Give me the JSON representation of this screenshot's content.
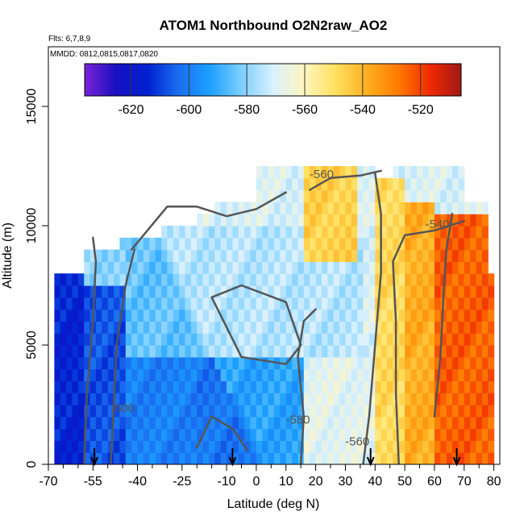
{
  "chart_data": {
    "type": "heatmap",
    "title": "ATOM1 Northbound O2N2raw_AO2",
    "flights_note": "Flts: 6,7,8,9",
    "dates_note": "MMDD: 0812,0815,0817,0820",
    "xlabel": "Latitude (deg N)",
    "ylabel": "Altitude (m)",
    "xlim": [
      -70,
      82
    ],
    "ylim": [
      0,
      17500
    ],
    "x_ticks": [
      -70,
      -55,
      -40,
      -25,
      -10,
      0,
      10,
      20,
      30,
      40,
      50,
      60,
      70,
      80
    ],
    "x_tick_labels": [
      "-70",
      "-55",
      "-40",
      "-25",
      "-10",
      "0",
      "10",
      "20",
      "30",
      "40",
      "50",
      "60",
      "70",
      "80"
    ],
    "x_minor_ticks": [
      -65,
      -60,
      -50,
      -45,
      -35,
      -30,
      -20,
      -15,
      -5,
      5,
      15,
      25,
      35,
      45,
      55,
      65,
      75
    ],
    "y_ticks": [
      0,
      5000,
      10000,
      15000
    ],
    "y_tick_labels": [
      "0",
      "5000",
      "10000",
      "15000"
    ],
    "colorbar": {
      "range": [
        -636,
        -506
      ],
      "ticks": [
        -620,
        -600,
        -580,
        -560,
        -540,
        -520
      ],
      "tick_labels": [
        "-620",
        "-600",
        "-580",
        "-560",
        "-540",
        "-520"
      ],
      "colors": [
        "#7a22d6",
        "#1810c0",
        "#0020d0",
        "#1a6ef0",
        "#1ca0ff",
        "#7ccfff",
        "#d8f0ff",
        "#fff6c0",
        "#ffe060",
        "#ffb020",
        "#ff7a00",
        "#f02a00",
        "#a01818"
      ]
    },
    "contour_levels": [
      -600,
      -580,
      -560,
      -540
    ],
    "contour_labels": [
      {
        "text": "-560",
        "x": 22,
        "y": 12000
      },
      {
        "text": "-540",
        "x": 61,
        "y": 9900
      },
      {
        "text": "-600",
        "x": -45,
        "y": 2200
      },
      {
        "text": "-580",
        "x": 14,
        "y": 1700
      },
      {
        "text": "-560",
        "x": 34,
        "y": 800
      }
    ],
    "profile_latitudes": [
      -54.5,
      -8,
      38.5,
      67.5
    ],
    "regions": [
      {
        "lat": [
          -68,
          -58
        ],
        "alt": [
          0,
          8000
        ],
        "value": -605
      },
      {
        "lat": [
          -58,
          -45
        ],
        "alt": [
          0,
          7500
        ],
        "value": -598
      },
      {
        "lat": [
          -45,
          -20
        ],
        "alt": [
          0,
          7000
        ],
        "value": -590
      },
      {
        "lat": [
          -20,
          15
        ],
        "alt": [
          0,
          4500
        ],
        "value": -592
      },
      {
        "lat": [
          -45,
          35
        ],
        "alt": [
          4500,
          10000
        ],
        "value": -575
      },
      {
        "lat": [
          15,
          40
        ],
        "alt": [
          0,
          4500
        ],
        "value": -568
      },
      {
        "lat": [
          40,
          50
        ],
        "alt": [
          0,
          12000
        ],
        "value": -548
      },
      {
        "lat": [
          50,
          60
        ],
        "alt": [
          0,
          11000
        ],
        "value": -538
      },
      {
        "lat": [
          60,
          80
        ],
        "alt": [
          0,
          10500
        ],
        "value": -524
      },
      {
        "lat": [
          15,
          33
        ],
        "alt": [
          8500,
          12500
        ],
        "value": -546
      }
    ]
  }
}
